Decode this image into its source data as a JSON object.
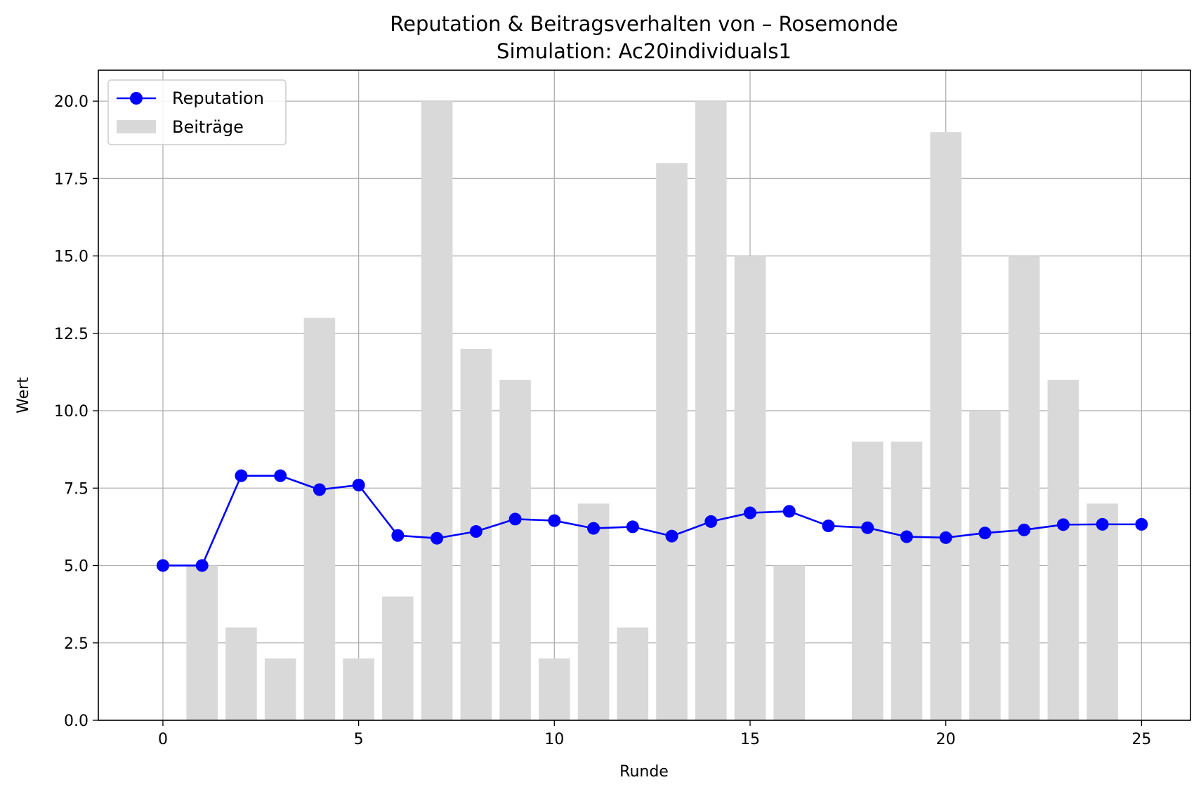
{
  "chart_data": {
    "type": "bar+line",
    "title": "Reputation & Beitragsverhalten von – Rosemonde",
    "subtitle": "Simulation: Ac20individuals1",
    "xlabel": "Runde",
    "ylabel": "Wert",
    "xlim": [
      -1.65,
      26.25
    ],
    "ylim": [
      0,
      21
    ],
    "xticks": [
      0,
      5,
      10,
      15,
      20,
      25
    ],
    "yticks": [
      0,
      2.5,
      5,
      7.5,
      10,
      12.5,
      15,
      17.5,
      20
    ],
    "xtick_labels": [
      "0",
      "5",
      "10",
      "15",
      "20",
      "25"
    ],
    "ytick_labels": [
      "0.0",
      "2.5",
      "5.0",
      "7.5",
      "10.0",
      "12.5",
      "15.0",
      "17.5",
      "20.0"
    ],
    "grid": true,
    "legend_position": "top-left",
    "legend": [
      {
        "label": "Reputation",
        "kind": "line-marker",
        "color": "#0000ff"
      },
      {
        "label": "Beiträge",
        "kind": "patch",
        "color": "#d9d9d9"
      }
    ],
    "series": [
      {
        "name": "Beiträge",
        "type": "bar",
        "color": "#d9d9d9",
        "x": [
          1,
          2,
          3,
          4,
          5,
          6,
          7,
          8,
          9,
          10,
          11,
          12,
          13,
          14,
          15,
          16,
          17,
          18,
          19,
          20,
          21,
          22,
          23,
          24
        ],
        "values": [
          5,
          3,
          2,
          13,
          2,
          4,
          20,
          12,
          11,
          2,
          7,
          3,
          18,
          20,
          15,
          5,
          0,
          9,
          9,
          19,
          10,
          15,
          11,
          7
        ]
      },
      {
        "name": "Reputation",
        "type": "line",
        "color": "#0000ff",
        "x": [
          0,
          1,
          2,
          3,
          4,
          5,
          6,
          7,
          8,
          9,
          10,
          11,
          12,
          13,
          14,
          15,
          16,
          17,
          18,
          19,
          20,
          21,
          22,
          23,
          24,
          25
        ],
        "values": [
          5.0,
          5.0,
          7.9,
          7.9,
          7.45,
          7.6,
          5.97,
          5.88,
          6.1,
          6.5,
          6.45,
          6.2,
          6.25,
          5.95,
          6.42,
          6.7,
          6.75,
          6.28,
          6.22,
          5.93,
          5.9,
          6.05,
          6.15,
          6.32,
          6.33,
          6.33
        ]
      }
    ]
  }
}
